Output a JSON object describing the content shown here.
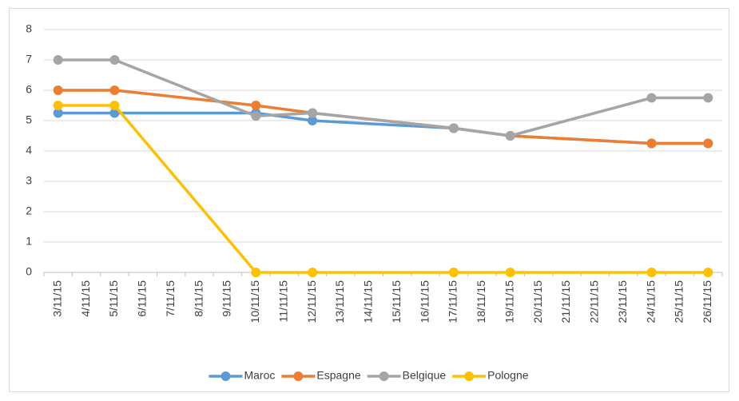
{
  "chart_data": {
    "type": "line",
    "x": [
      "3/11/15",
      "5/11/15",
      "10/11/15",
      "12/11/15",
      "17/11/15",
      "19/11/15",
      "24/11/15",
      "26/11/15"
    ],
    "xticks": [
      "3/11/15",
      "4/11/15",
      "5/11/15",
      "6/11/15",
      "7/11/15",
      "8/11/15",
      "9/11/15",
      "10/11/15",
      "11/11/15",
      "12/11/15",
      "13/11/15",
      "14/11/15",
      "15/11/15",
      "16/11/15",
      "17/11/15",
      "18/11/15",
      "19/11/15",
      "20/11/15",
      "21/11/15",
      "22/11/15",
      "23/11/15",
      "24/11/15",
      "25/11/15",
      "26/11/15"
    ],
    "series": [
      {
        "name": "Maroc",
        "color": "#5b9bd5",
        "values": [
          5.25,
          5.25,
          5.25,
          5.0,
          4.75,
          4.5,
          4.25,
          4.25
        ]
      },
      {
        "name": "Espagne",
        "color": "#ed7d31",
        "values": [
          6,
          6,
          5.5,
          5.25,
          4.75,
          4.5,
          4.25,
          4.25
        ]
      },
      {
        "name": "Belgique",
        "color": "#a5a5a5",
        "values": [
          7,
          7,
          5.15,
          5.25,
          4.75,
          4.5,
          5.75,
          5.75
        ]
      },
      {
        "name": "Pologne",
        "color": "#ffc000",
        "values": [
          5.5,
          5.5,
          0,
          0,
          0,
          0,
          0,
          0
        ]
      }
    ],
    "ylim": [
      0,
      8
    ],
    "yticks": [
      0,
      1,
      2,
      3,
      4,
      5,
      6,
      7,
      8
    ],
    "grid": true,
    "legend": "bottom"
  }
}
